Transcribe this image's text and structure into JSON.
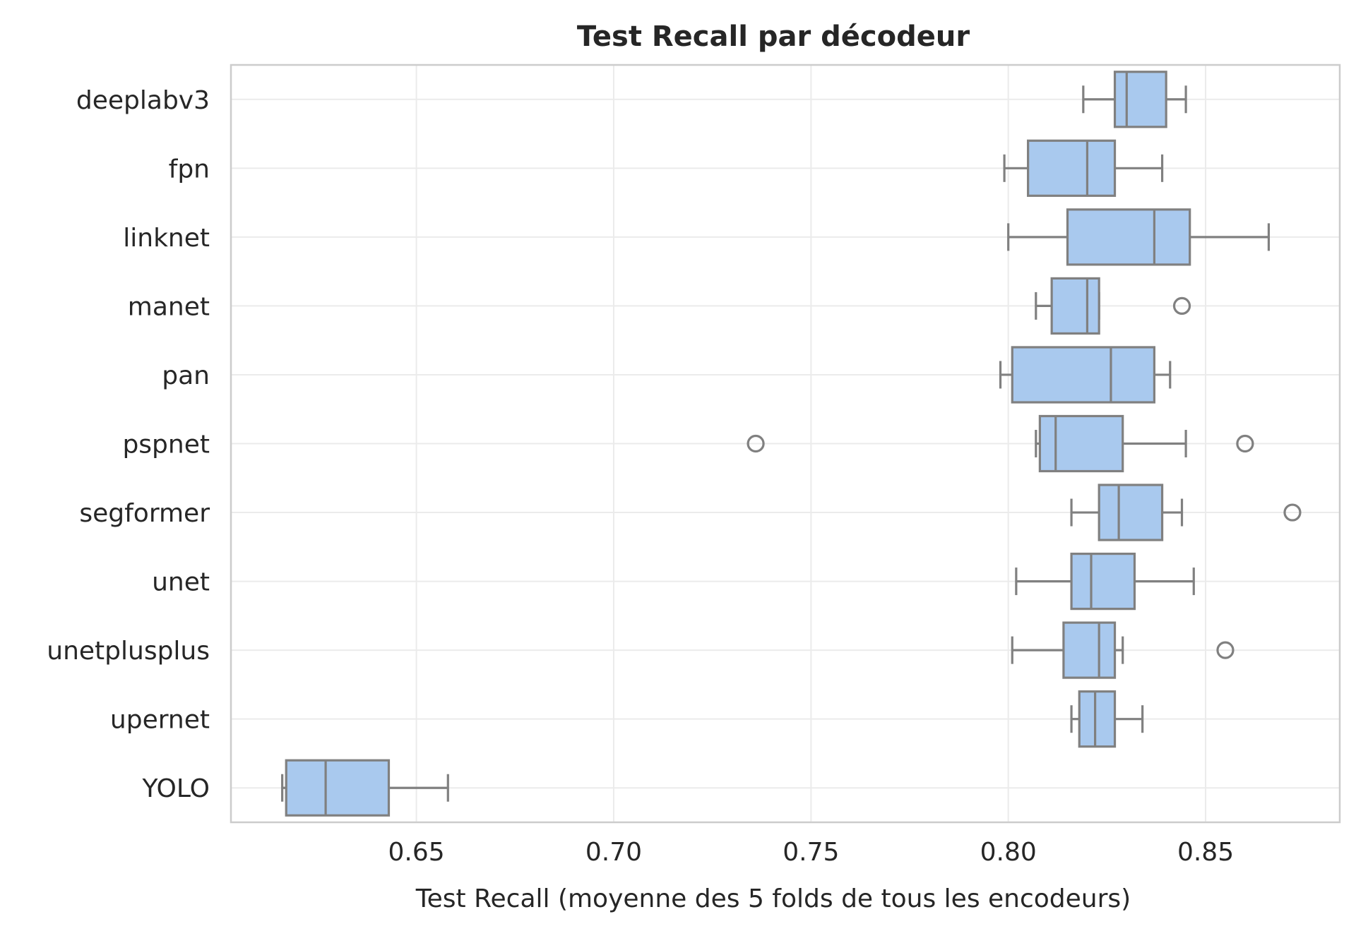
{
  "chart_data": {
    "type": "boxplot",
    "orientation": "horizontal",
    "title": "Test Recall par décodeur",
    "xlabel": "Test Recall (moyenne des 5 folds de tous les encodeurs)",
    "ylabel": "",
    "xlim": [
      0.603,
      0.884
    ],
    "x_ticks": [
      0.65,
      0.7,
      0.75,
      0.8,
      0.85
    ],
    "x_tick_labels": [
      "0.65",
      "0.70",
      "0.75",
      "0.80",
      "0.85"
    ],
    "grid": true,
    "box_color": "#a9c9ee",
    "line_color": "#808080",
    "categories": [
      "deeplabv3",
      "fpn",
      "linknet",
      "manet",
      "pan",
      "pspnet",
      "segformer",
      "unet",
      "unetplusplus",
      "upernet",
      "YOLO"
    ],
    "boxes": [
      {
        "label": "deeplabv3",
        "whislo": 0.819,
        "q1": 0.827,
        "med": 0.83,
        "q3": 0.84,
        "whishi": 0.845,
        "fliers": []
      },
      {
        "label": "fpn",
        "whislo": 0.799,
        "q1": 0.805,
        "med": 0.82,
        "q3": 0.827,
        "whishi": 0.839,
        "fliers": []
      },
      {
        "label": "linknet",
        "whislo": 0.8,
        "q1": 0.815,
        "med": 0.837,
        "q3": 0.846,
        "whishi": 0.866,
        "fliers": []
      },
      {
        "label": "manet",
        "whislo": 0.807,
        "q1": 0.811,
        "med": 0.82,
        "q3": 0.823,
        "whishi": 0.823,
        "fliers": [
          0.844
        ]
      },
      {
        "label": "pan",
        "whislo": 0.798,
        "q1": 0.801,
        "med": 0.826,
        "q3": 0.837,
        "whishi": 0.841,
        "fliers": []
      },
      {
        "label": "pspnet",
        "whislo": 0.807,
        "q1": 0.808,
        "med": 0.812,
        "q3": 0.829,
        "whishi": 0.845,
        "fliers": [
          0.736,
          0.86
        ]
      },
      {
        "label": "segformer",
        "whislo": 0.816,
        "q1": 0.823,
        "med": 0.828,
        "q3": 0.839,
        "whishi": 0.844,
        "fliers": [
          0.872
        ]
      },
      {
        "label": "unet",
        "whislo": 0.802,
        "q1": 0.816,
        "med": 0.821,
        "q3": 0.832,
        "whishi": 0.847,
        "fliers": []
      },
      {
        "label": "unetplusplus",
        "whislo": 0.801,
        "q1": 0.814,
        "med": 0.823,
        "q3": 0.827,
        "whishi": 0.829,
        "fliers": [
          0.855
        ]
      },
      {
        "label": "upernet",
        "whislo": 0.816,
        "q1": 0.818,
        "med": 0.822,
        "q3": 0.827,
        "whishi": 0.834,
        "fliers": []
      },
      {
        "label": "YOLO",
        "whislo": 0.616,
        "q1": 0.617,
        "med": 0.627,
        "q3": 0.643,
        "whishi": 0.658,
        "fliers": []
      }
    ]
  }
}
